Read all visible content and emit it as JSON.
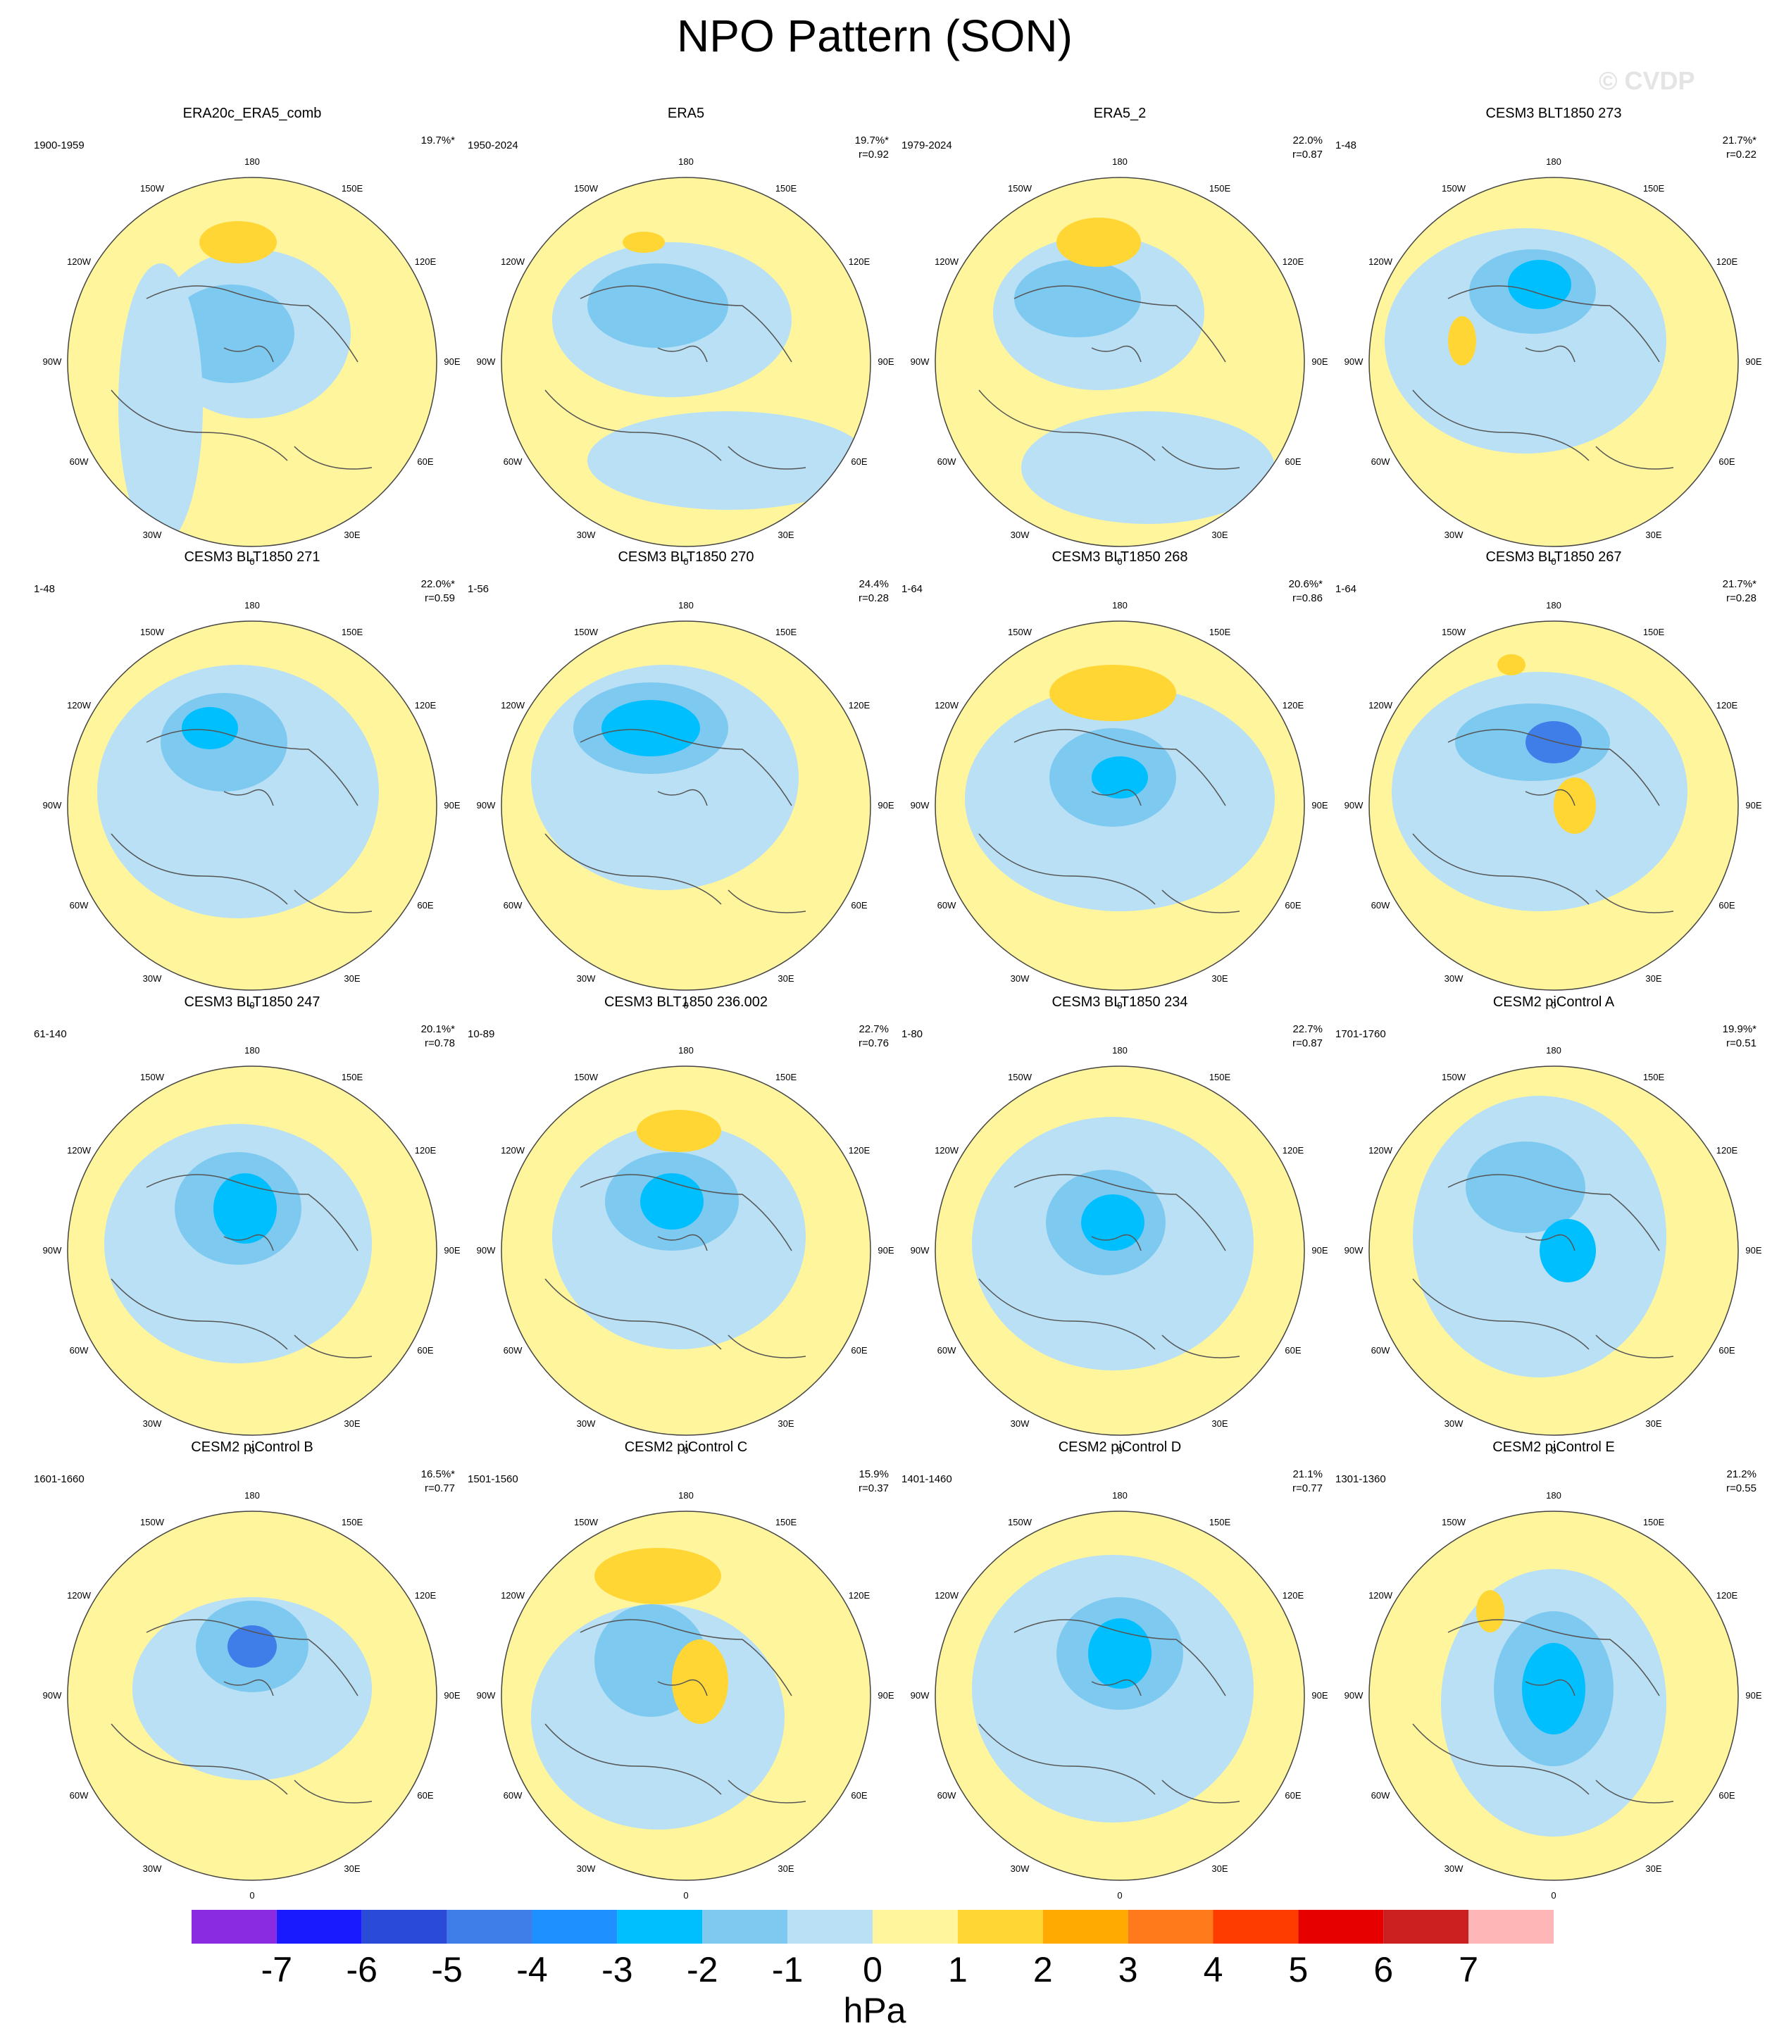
{
  "title": "NPO Pattern (SON)",
  "watermark": "© CVDP",
  "lon_labels": [
    "180",
    "150E",
    "120E",
    "90E",
    "60E",
    "30E",
    "0",
    "30W",
    "60W",
    "90W",
    "120W",
    "150W"
  ],
  "panels": [
    {
      "title": "ERA20c_ERA5_comb",
      "years": "1900-1959",
      "pct": "19.7%*",
      "r": ""
    },
    {
      "title": "ERA5",
      "years": "1950-2024",
      "pct": "19.7%*",
      "r": "r=0.92"
    },
    {
      "title": "ERA5_2",
      "years": "1979-2024",
      "pct": "22.0%",
      "r": "r=0.87"
    },
    {
      "title": "CESM3 BLT1850 273",
      "years": "1-48",
      "pct": "21.7%*",
      "r": "r=0.22"
    },
    {
      "title": "CESM3 BLT1850 271",
      "years": "1-48",
      "pct": "22.0%*",
      "r": "r=0.59"
    },
    {
      "title": "CESM3 BLT1850 270",
      "years": "1-56",
      "pct": "24.4%",
      "r": "r=0.28"
    },
    {
      "title": "CESM3 BLT1850 268",
      "years": "1-64",
      "pct": "20.6%*",
      "r": "r=0.86"
    },
    {
      "title": "CESM3 BLT1850 267",
      "years": "1-64",
      "pct": "21.7%*",
      "r": "r=0.28"
    },
    {
      "title": "CESM3 BLT1850 247",
      "years": "61-140",
      "pct": "20.1%*",
      "r": "r=0.78"
    },
    {
      "title": "CESM3 BLT1850 236.002",
      "years": "10-89",
      "pct": "22.7%",
      "r": "r=0.76"
    },
    {
      "title": "CESM3 BLT1850 234",
      "years": "1-80",
      "pct": "22.7%",
      "r": "r=0.87"
    },
    {
      "title": "CESM2 piControl A",
      "years": "1701-1760",
      "pct": "19.9%*",
      "r": "r=0.51"
    },
    {
      "title": "CESM2 piControl B",
      "years": "1601-1660",
      "pct": "16.5%*",
      "r": "r=0.77"
    },
    {
      "title": "CESM2 piControl C",
      "years": "1501-1560",
      "pct": "15.9%",
      "r": "r=0.37"
    },
    {
      "title": "CESM2 piControl D",
      "years": "1401-1460",
      "pct": "21.1%",
      "r": "r=0.77"
    },
    {
      "title": "CESM2 piControl E",
      "years": "1301-1360",
      "pct": "21.2%",
      "r": "r=0.55"
    }
  ],
  "colorbar": {
    "colors": [
      "#8a2be2",
      "#1a1aff",
      "#2a4bd7",
      "#3f7ee8",
      "#1e90ff",
      "#00bfff",
      "#7ec9f0",
      "#b9e0f5",
      "#fff59d",
      "#ffd633",
      "#ffaa00",
      "#ff7a1a",
      "#ff3c00",
      "#e60000",
      "#cc1f1f",
      "#ffb6b6"
    ],
    "ticks": [
      "-7",
      "-6",
      "-5",
      "-4",
      "-3",
      "-2",
      "-1",
      "0",
      "1",
      "2",
      "3",
      "4",
      "5",
      "6",
      "7"
    ],
    "unit": "hPa"
  }
}
